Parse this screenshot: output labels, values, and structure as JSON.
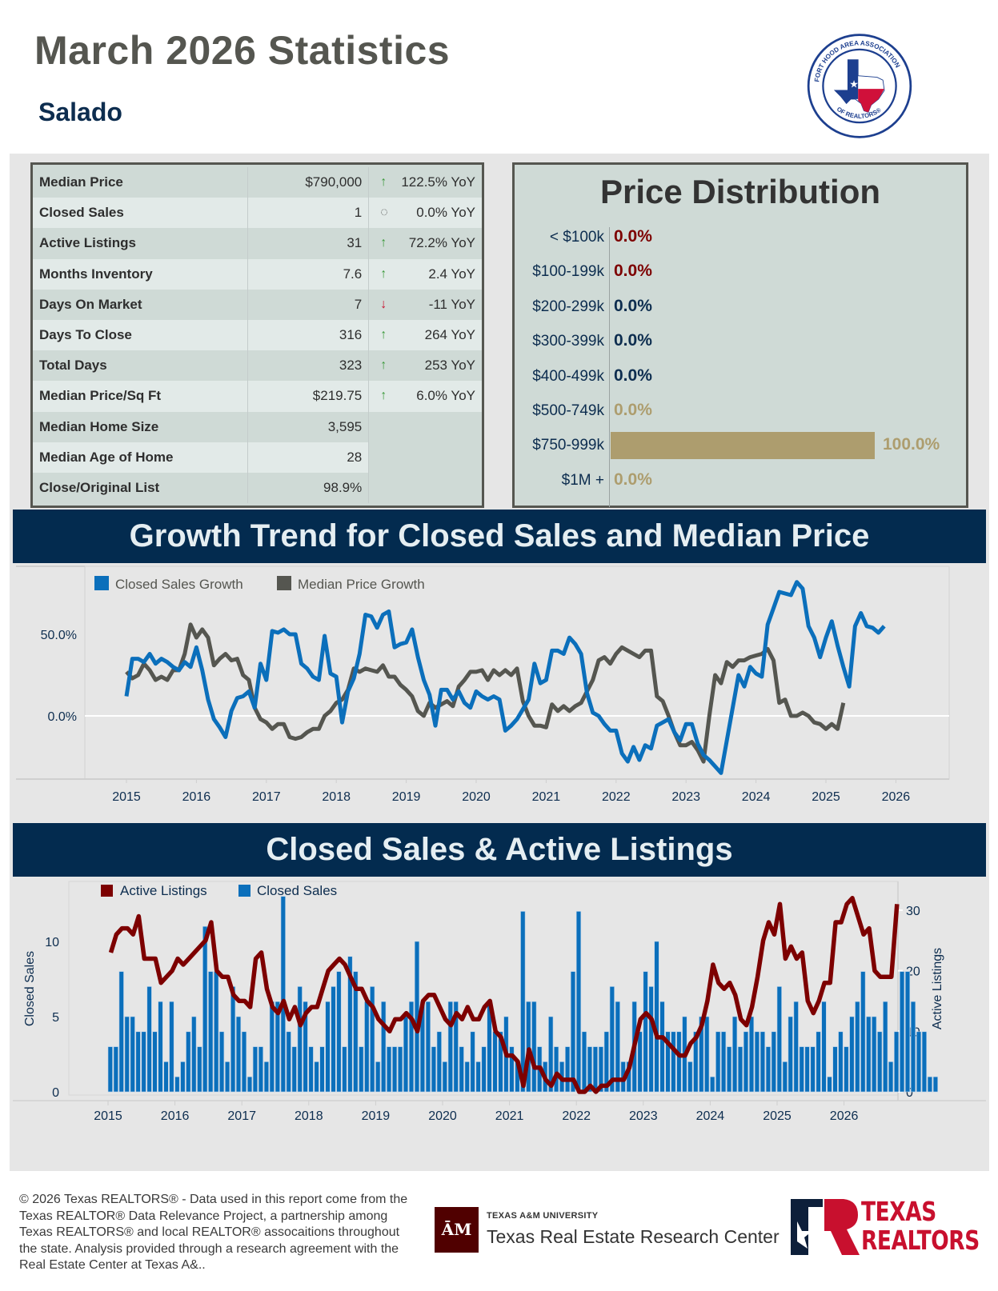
{
  "header": {
    "title": "March 2026 Statistics",
    "area": "Salado",
    "logo_text_top": "FORT HOOD AREA ASSOCIATION",
    "logo_text_bottom": "OF REALTORS®"
  },
  "colors": {
    "navy": "#032b4f",
    "closed_sales_blue": "#0b6fbb",
    "median_price_gray": "#555650",
    "active_listings_red": "#7d0000",
    "distribution_gold": "#ad9d6e",
    "up_green": "#3c9a3c",
    "down_red": "#c8102e"
  },
  "stats": [
    {
      "label": "Median Price",
      "value": "$790,000",
      "trend": "up",
      "change": "122.5% YoY"
    },
    {
      "label": "Closed Sales",
      "value": "1",
      "trend": "flat",
      "change": "0.0% YoY"
    },
    {
      "label": "Active Listings",
      "value": "31",
      "trend": "up",
      "change": "72.2% YoY"
    },
    {
      "label": "Months Inventory",
      "value": "7.6",
      "trend": "up",
      "change": "2.4 YoY"
    },
    {
      "label": "Days On Market",
      "value": "7",
      "trend": "down",
      "change": "-11 YoY"
    },
    {
      "label": "Days To Close",
      "value": "316",
      "trend": "up",
      "change": "264 YoY"
    },
    {
      "label": "Total Days",
      "value": "323",
      "trend": "up",
      "change": "253 YoY"
    },
    {
      "label": "Median Price/Sq Ft",
      "value": "$219.75",
      "trend": "up",
      "change": "6.0% YoY"
    },
    {
      "label": "Median Home Size",
      "value": "3,595",
      "trend": null,
      "change": ""
    },
    {
      "label": "Median Age of Home",
      "value": "28",
      "trend": null,
      "change": ""
    },
    {
      "label": "Close/Original List",
      "value": "98.9%",
      "trend": null,
      "change": ""
    }
  ],
  "sections": {
    "growth_title": "Growth Trend for Closed Sales and Median Price",
    "sales_title": "Closed Sales & Active Listings"
  },
  "chart_data": [
    {
      "type": "bar",
      "title": "Price Distribution",
      "orientation": "horizontal",
      "categories": [
        "< $100k",
        "$100-199k",
        "$200-299k",
        "$300-399k",
        "$400-499k",
        "$500-749k",
        "$750-999k",
        "$1M +"
      ],
      "values": [
        0.0,
        0.0,
        0.0,
        0.0,
        0.0,
        0.0,
        100.0,
        0.0
      ],
      "value_labels": [
        "0.0%",
        "0.0%",
        "0.0%",
        "0.0%",
        "0.0%",
        "0.0%",
        "100.0%",
        "0.0%"
      ],
      "label_colors": [
        "#7d0000",
        "#7d0000",
        "#0d2d4f",
        "#0d2d4f",
        "#0d2d4f",
        "#ad9d6e",
        "#ad9d6e",
        "#ad9d6e"
      ],
      "xlim": [
        0,
        100
      ]
    },
    {
      "type": "line",
      "title": "Growth Trend for Closed Sales and Median Price",
      "xlabel": "",
      "ylabel": "",
      "x_start": "2015-01",
      "x_step": "month",
      "x_ticks": [
        "2015",
        "2016",
        "2017",
        "2018",
        "2019",
        "2020",
        "2021",
        "2022",
        "2023",
        "2024",
        "2025",
        "2026"
      ],
      "y_ticks": [
        "0.0%",
        "50.0%"
      ],
      "y_tick_values": [
        0,
        50
      ],
      "ylim": [
        -40,
        92
      ],
      "legend": "top-left",
      "series": [
        {
          "name": "Closed Sales Growth",
          "color": "#0b6fbb",
          "values": [
            12,
            35,
            35,
            33,
            38,
            32,
            35,
            33,
            30,
            28,
            33,
            30,
            42,
            28,
            10,
            -2,
            -7,
            -13,
            3,
            11,
            12,
            15,
            5,
            32,
            22,
            52,
            51,
            53,
            50,
            50,
            32,
            29,
            24,
            22,
            49,
            26,
            24,
            -4,
            15,
            23,
            38,
            62,
            61,
            54,
            62,
            64,
            42,
            44,
            45,
            53,
            36,
            22,
            13,
            -6,
            16,
            16,
            10,
            15,
            8,
            5,
            15,
            12,
            10,
            12,
            10,
            -9,
            -6,
            -2,
            4,
            10,
            32,
            20,
            22,
            40,
            40,
            38,
            48,
            44,
            38,
            14,
            2,
            0,
            -5,
            -9,
            -9,
            -23,
            -28,
            -19,
            -27,
            -18,
            -20,
            -6,
            -4,
            -2,
            -10,
            -15,
            -5,
            -5,
            -17,
            -24,
            -27,
            -31,
            -35,
            -15,
            5,
            25,
            18,
            30,
            26,
            24,
            56,
            66,
            76,
            75,
            74,
            82,
            78,
            55,
            48,
            36,
            48,
            58,
            43,
            30,
            18,
            55,
            63,
            55,
            54,
            51,
            55
          ]
        },
        {
          "name": "Median Price Growth",
          "color": "#555650",
          "values": [
            27,
            23,
            25,
            32,
            28,
            22,
            24,
            22,
            28,
            28,
            38,
            56,
            48,
            53,
            48,
            31,
            35,
            38,
            34,
            35,
            25,
            22,
            5,
            -2,
            -4,
            -8,
            -5,
            -5,
            -13,
            -14,
            -13,
            -10,
            -8,
            -8,
            0,
            3,
            8,
            10,
            16,
            29,
            27,
            29,
            28,
            27,
            31,
            24,
            24,
            19,
            16,
            12,
            3,
            0,
            8,
            5,
            7,
            9,
            6,
            18,
            22,
            27,
            27,
            28,
            22,
            28,
            25,
            28,
            25,
            29,
            9,
            0,
            -6,
            -6,
            -7,
            7,
            3,
            6,
            3,
            6,
            8,
            15,
            22,
            34,
            36,
            32,
            38,
            42,
            40,
            38,
            36,
            40,
            40,
            12,
            9,
            0,
            -10,
            -18,
            -18,
            -16,
            -21,
            -28,
            0,
            25,
            20,
            33,
            30,
            34,
            34,
            36,
            37,
            38,
            41,
            34,
            8,
            10,
            0,
            0,
            2,
            0,
            -4,
            -5,
            -8,
            -5,
            -8,
            8
          ]
        }
      ]
    },
    {
      "type": "bar",
      "title": "Closed Sales & Active Listings",
      "x_start": "2015-01",
      "x_step": "month",
      "x_ticks": [
        "2015",
        "2016",
        "2017",
        "2018",
        "2019",
        "2020",
        "2021",
        "2022",
        "2023",
        "2024",
        "2025",
        "2026"
      ],
      "y_left_label": "Closed Sales",
      "y_left_ticks": [
        0,
        5,
        10
      ],
      "y_left_lim": [
        0,
        14.5
      ],
      "y_right_label": "Active Listings",
      "y_right_ticks": [
        0,
        10,
        20,
        30
      ],
      "y_right_lim": [
        0,
        36
      ],
      "legend": "top-left",
      "series": [
        {
          "name": "Closed Sales",
          "type": "bar",
          "axis": "left",
          "color": "#0b6fbb",
          "values": [
            3,
            3,
            8,
            5,
            5,
            4,
            4,
            7,
            4,
            6,
            2,
            6,
            1,
            2,
            4,
            5,
            3,
            11,
            8,
            8,
            4,
            2,
            7,
            5,
            4,
            1,
            3,
            3,
            2,
            6,
            6,
            13,
            4,
            3,
            7,
            6,
            3,
            2,
            3,
            6,
            7,
            8,
            3,
            9,
            8,
            3,
            6,
            7,
            2,
            6,
            3,
            3,
            3,
            5,
            6,
            10,
            6,
            6,
            3,
            4,
            2,
            6,
            6,
            3,
            2,
            4,
            2,
            3,
            6,
            4,
            4,
            5,
            3,
            2,
            12,
            6,
            6,
            3,
            2,
            5,
            3,
            2,
            3,
            8,
            12,
            4,
            3,
            3,
            3,
            4,
            7,
            6,
            2,
            2,
            6,
            4,
            8,
            7,
            10,
            6,
            4,
            4,
            4,
            5,
            2,
            4,
            5,
            5,
            1,
            4,
            4,
            3,
            5,
            3,
            4,
            5,
            4,
            4,
            3,
            4,
            7,
            2,
            5,
            6,
            3,
            3,
            3,
            4,
            6,
            1,
            3,
            4,
            3,
            5,
            6,
            8,
            5,
            5,
            4,
            6,
            2,
            4,
            8,
            8,
            6,
            4,
            4,
            1,
            1
          ]
        },
        {
          "name": "Active Listings",
          "type": "line",
          "axis": "right",
          "color": "#7d0000",
          "values": [
            23,
            26,
            27,
            27,
            26,
            29,
            22,
            22,
            22,
            18,
            19,
            20,
            22,
            21,
            22,
            23,
            24,
            25,
            28,
            20,
            19,
            19,
            16,
            15,
            15,
            14,
            22,
            23,
            17,
            14,
            13,
            15,
            12,
            14,
            11,
            13,
            14,
            14,
            17,
            20,
            21,
            22,
            21,
            19,
            17,
            17,
            15,
            14,
            12,
            11,
            10,
            12,
            12,
            13,
            12,
            10,
            15,
            16,
            16,
            14,
            12,
            11,
            13,
            12,
            14,
            12,
            12,
            14,
            15,
            10,
            9,
            6,
            6,
            5,
            1,
            7,
            4,
            4,
            2,
            1,
            3,
            2,
            2,
            2,
            0,
            0,
            1,
            0,
            1,
            1,
            2,
            2,
            2,
            4,
            8,
            12,
            13,
            12,
            9,
            9,
            8,
            7,
            6,
            6,
            8,
            9,
            11,
            15,
            21,
            18,
            17,
            18,
            16,
            12,
            11,
            14,
            19,
            25,
            28,
            26,
            31,
            22,
            24,
            22,
            23,
            15,
            13,
            15,
            18,
            18,
            28,
            28,
            31,
            32,
            29,
            26,
            27,
            20,
            19,
            19,
            19,
            31
          ]
        }
      ]
    }
  ],
  "footer": {
    "disclaimer": "© 2026 Texas REALTORS® - Data used in this report come from the Texas REALTOR® Data Relevance Project, a partnership among Texas REALTORS® and local REALTOR® assocaitions throughout the state. Analysis provided through a research agreement with the Real Estate Center at Texas A&..",
    "tamu_small": "TEXAS A&M UNIVERSITY",
    "tamu_name": "Texas Real Estate Research Center",
    "tamu_mark": "ĀM",
    "tr_line1": "TEXAS",
    "tr_line2": "REALTORS"
  }
}
